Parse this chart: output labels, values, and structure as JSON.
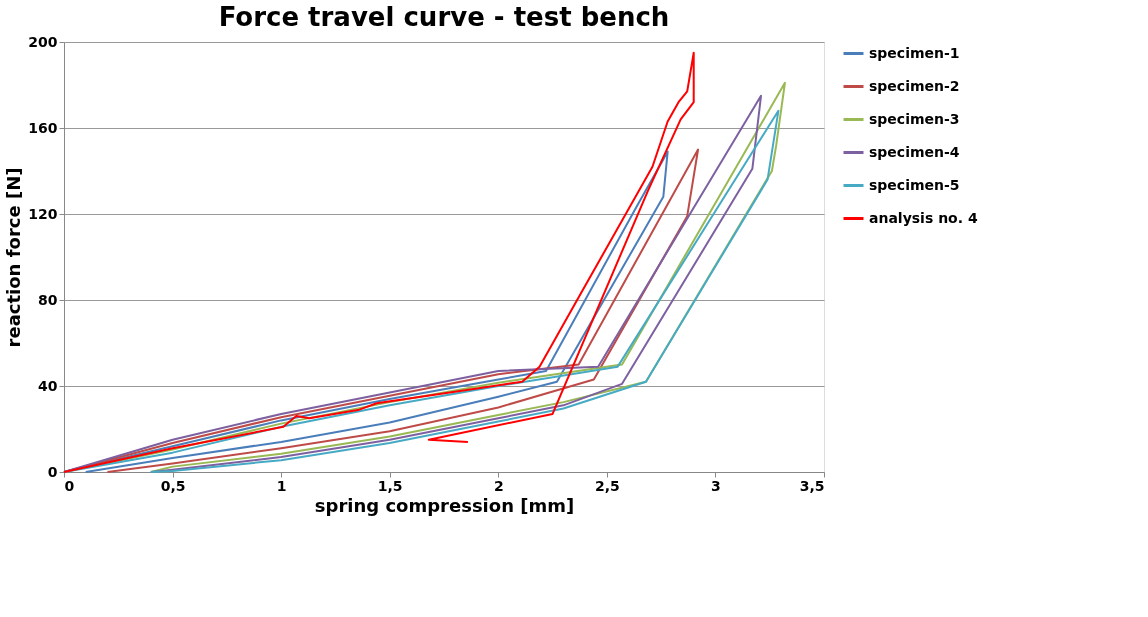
{
  "chart_data": {
    "type": "line",
    "title": "Force travel curve - test bench",
    "xlabel": "spring compression [mm]",
    "ylabel": "reaction force  [N]",
    "xlim": [
      0,
      3.5
    ],
    "xticks": [
      0,
      {
        "value": 0.5,
        "label": "0,5"
      },
      1,
      {
        "value": 1.5,
        "label": "1,5"
      },
      2,
      {
        "value": 2.5,
        "label": "2,5"
      },
      3,
      {
        "value": 3.5,
        "label": "3,5"
      }
    ],
    "ylim": [
      0,
      200
    ],
    "yticks": [
      0,
      40,
      80,
      120,
      160,
      200
    ],
    "grid": "y",
    "legend": "right",
    "marker": "none",
    "line_style": "solid",
    "series": [
      {
        "name": "specimen-1",
        "color": "#4a7ebb",
        "x": [
          0,
          0.5,
          1,
          1.5,
          2,
          2.22,
          2.64,
          2.78,
          2.76,
          2.27,
          2,
          1.5,
          1,
          0.5,
          0.1
        ],
        "values": [
          0,
          12,
          24,
          34,
          43,
          47,
          124,
          149,
          128,
          42,
          35,
          23,
          14,
          6.5,
          0
        ]
      },
      {
        "name": "specimen-2",
        "color": "#be4b48",
        "x": [
          0,
          0.5,
          1,
          1.5,
          2,
          2.37,
          2.92,
          2.87,
          2.44,
          2,
          1.5,
          1,
          0.5,
          0.2
        ],
        "values": [
          0,
          13.5,
          25.5,
          35.5,
          45.5,
          50,
          150,
          119,
          43,
          30,
          19,
          11,
          4,
          0
        ]
      },
      {
        "name": "specimen-3",
        "color": "#98b954",
        "x": [
          0,
          0.5,
          1,
          1.5,
          2,
          2.57,
          3.32,
          3.28,
          3.26,
          2.68,
          2.3,
          2,
          1.5,
          1,
          0.5,
          0.4
        ],
        "values": [
          0,
          10.5,
          22.5,
          32.5,
          41.5,
          50,
          181,
          152,
          140,
          42,
          32.5,
          26.5,
          16.5,
          8.5,
          2.5,
          0
        ]
      },
      {
        "name": "specimen-4",
        "color": "#7d60a0",
        "x": [
          0,
          0.5,
          1,
          1.5,
          2,
          2.46,
          3.21,
          3.17,
          2.57,
          2.3,
          2,
          1.5,
          1,
          0.5,
          0.4
        ],
        "values": [
          0,
          15,
          27,
          37,
          47,
          49,
          175,
          141,
          41,
          31,
          25,
          15,
          7,
          1,
          0
        ]
      },
      {
        "name": "specimen-5",
        "color": "#46aac5",
        "x": [
          0,
          0.5,
          1,
          1.5,
          2,
          2.55,
          3.29,
          3.24,
          2.68,
          2.3,
          2,
          1.5,
          1,
          0.5,
          0.4
        ],
        "values": [
          0,
          9,
          21,
          31,
          40,
          49,
          168,
          136,
          42,
          29.5,
          23.5,
          13.5,
          5.5,
          0.5,
          0
        ]
      },
      {
        "name": "analysis no. 4",
        "color": "#ff0000",
        "x": [
          0,
          0.5,
          1.01,
          1.07,
          1.13,
          1.36,
          1.44,
          1.91,
          2.11,
          2.19,
          2.38,
          2.71,
          2.78,
          2.83,
          2.87,
          2.9,
          2.9,
          2.84,
          2.69,
          2.25,
          1.68,
          1.86
        ],
        "values": [
          0,
          11,
          21,
          26,
          25,
          29,
          32,
          39,
          42,
          49,
          83,
          142,
          163,
          172,
          177,
          195,
          172,
          164,
          131,
          27,
          15,
          14
        ]
      }
    ]
  }
}
